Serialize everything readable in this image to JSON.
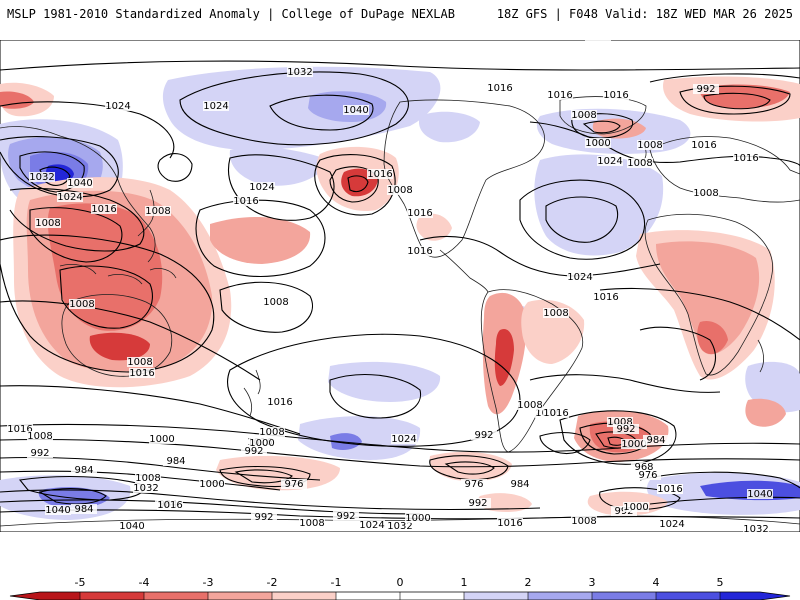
{
  "header": {
    "left": "MSLP 1981-2010 Standardized Anomaly | College of DuPage NEXLAB",
    "right": "18Z GFS | F048 Valid: 18Z WED MAR 26 2025"
  },
  "colors": {
    "red_5": "#b8151a",
    "red_4": "#d63a3a",
    "red_3": "#e8706a",
    "red_2": "#f3a59c",
    "red_1": "#fbd0c8",
    "neutral": "#ffffff",
    "blue_1": "#d4d4f6",
    "blue_2": "#a6a8ee",
    "blue_3": "#7a7ce6",
    "blue_4": "#4c4fe0",
    "blue_5": "#2326d8",
    "contour": "#000000",
    "coast": "#202020"
  },
  "legend": {
    "ticks": [
      "-5",
      "-4",
      "-3",
      "-2",
      "-1",
      "0",
      "1",
      "2",
      "3",
      "4",
      "5"
    ]
  },
  "isobar_labels": [
    "1032",
    "1024",
    "1024",
    "1040",
    "1016",
    "1016",
    "1000",
    "992",
    "1008",
    "1016",
    "1000",
    "1008",
    "1016",
    "1024",
    "1016",
    "1008",
    "1024",
    "1032",
    "1040",
    "1024",
    "1016",
    "1008",
    "1008",
    "1016",
    "1016",
    "1016",
    "1016",
    "1008",
    "1024",
    "1008",
    "1016",
    "1008",
    "1016",
    "1008",
    "1016",
    "1008",
    "1008",
    "1016",
    "1008",
    "1016",
    "1016",
    "1024",
    "1000",
    "1008",
    "992",
    "1016",
    "1000",
    "1008",
    "992",
    "1008",
    "1000",
    "992",
    "984",
    "968",
    "976",
    "992",
    "984",
    "976",
    "1000",
    "984",
    "1008",
    "1032",
    "984",
    "1016",
    "976",
    "984",
    "992",
    "984",
    "1016",
    "992",
    "1008",
    "992",
    "1024",
    "1032",
    "1000",
    "1016",
    "1008",
    "992",
    "1000",
    "1024",
    "1016",
    "1040",
    "1040",
    "1032",
    "1040",
    "1016"
  ]
}
